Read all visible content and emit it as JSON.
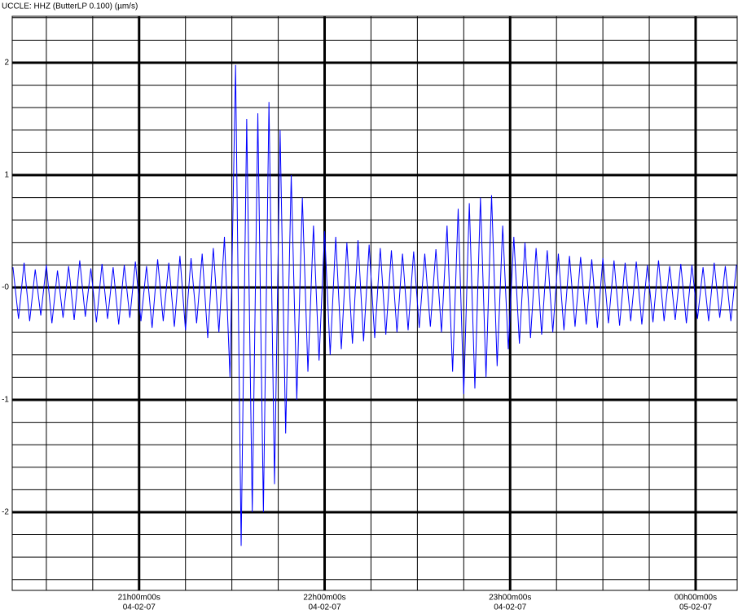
{
  "chart_data": {
    "type": "line",
    "title": "UCCLE: HHZ (ButterLP 0.100) (µm/s)",
    "xlim": [
      20.316,
      24.224
    ],
    "ylim": [
      -2.696,
      2.413
    ],
    "xticks": [
      {
        "value": 21,
        "label": "21h00m00s"
      },
      {
        "value": 22,
        "label": "22h00m00s"
      },
      {
        "value": 23,
        "label": "23h00m00s"
      },
      {
        "value": 24,
        "label": "00h00m00s"
      }
    ],
    "xtick_dates": [
      "04-02-07",
      "04-02-07",
      "04-02-07",
      "05-02-07"
    ],
    "xticks_minor": [
      20.5,
      20.75,
      21.25,
      21.5,
      21.75,
      22.25,
      22.5,
      22.75,
      23.25,
      23.5,
      23.75
    ],
    "yticks": [
      2,
      1,
      {
        "value": 0,
        "label": "-0"
      },
      -1,
      -2
    ],
    "yticks_minor": [
      -2.6,
      -2.4,
      -2.2,
      -1.8,
      -1.6,
      -1.4,
      -1.2,
      -0.8,
      -0.6,
      -0.4,
      -0.2,
      0.2,
      0.4,
      0.6,
      0.8,
      1.2,
      1.4,
      1.6,
      1.8,
      2.2,
      2.4
    ],
    "grid": true,
    "series": [
      {
        "color": "#0000ff",
        "x": [
          20.32,
          20.35,
          20.38,
          20.41,
          20.44,
          20.47,
          20.5,
          20.53,
          20.56,
          20.59,
          20.62,
          20.65,
          20.68,
          20.71,
          20.74,
          20.77,
          20.8,
          20.83,
          20.86,
          20.89,
          20.92,
          20.95,
          20.98,
          21.01,
          21.04,
          21.07,
          21.1,
          21.13,
          21.16,
          21.19,
          21.22,
          21.25,
          21.28,
          21.31,
          21.34,
          21.37,
          21.4,
          21.43,
          21.46,
          21.49,
          21.52,
          21.55,
          21.58,
          21.61,
          21.64,
          21.67,
          21.7,
          21.73,
          21.76,
          21.79,
          21.82,
          21.85,
          21.88,
          21.91,
          21.94,
          21.97,
          22,
          22.03,
          22.06,
          22.09,
          22.12,
          22.15,
          22.18,
          22.21,
          22.24,
          22.27,
          22.3,
          22.33,
          22.36,
          22.39,
          22.42,
          22.45,
          22.48,
          22.51,
          22.54,
          22.57,
          22.6,
          22.63,
          22.66,
          22.69,
          22.72,
          22.75,
          22.78,
          22.81,
          22.84,
          22.87,
          22.9,
          22.93,
          22.96,
          22.99,
          23.02,
          23.05,
          23.08,
          23.11,
          23.14,
          23.17,
          23.2,
          23.23,
          23.26,
          23.29,
          23.32,
          23.35,
          23.38,
          23.41,
          23.44,
          23.47,
          23.5,
          23.53,
          23.56,
          23.59,
          23.62,
          23.65,
          23.68,
          23.71,
          23.74,
          23.77,
          23.8,
          23.83,
          23.86,
          23.89,
          23.92,
          23.95,
          23.98,
          24.01,
          24.04,
          24.07,
          24.1,
          24.13,
          24.16,
          24.19,
          24.22
        ],
        "values": [
          0.18,
          -0.28,
          0.22,
          -0.3,
          0.16,
          -0.25,
          0.2,
          -0.32,
          0.15,
          -0.27,
          0.19,
          -0.29,
          0.24,
          -0.26,
          0.17,
          -0.31,
          0.21,
          -0.28,
          0.18,
          -0.33,
          0.2,
          -0.27,
          0.23,
          -0.3,
          0.19,
          -0.36,
          0.25,
          -0.3,
          0.22,
          -0.35,
          0.28,
          -0.38,
          0.26,
          -0.32,
          0.3,
          -0.45,
          0.35,
          -0.4,
          0.45,
          -0.8,
          1.98,
          -2.3,
          1.5,
          -2.0,
          1.55,
          -2.0,
          1.65,
          -1.75,
          1.4,
          -1.3,
          1.0,
          -1.0,
          0.8,
          -0.75,
          0.55,
          -0.65,
          0.5,
          -0.6,
          0.45,
          -0.55,
          0.4,
          -0.5,
          0.42,
          -0.48,
          0.38,
          -0.45,
          0.35,
          -0.42,
          0.33,
          -0.4,
          0.3,
          -0.38,
          0.32,
          -0.36,
          0.3,
          -0.35,
          0.34,
          -0.4,
          0.55,
          -0.75,
          0.7,
          -0.95,
          0.75,
          -0.9,
          0.8,
          -0.8,
          0.82,
          -0.7,
          0.55,
          -0.55,
          0.45,
          -0.5,
          0.4,
          -0.45,
          0.35,
          -0.42,
          0.33,
          -0.4,
          0.3,
          -0.38,
          0.28,
          -0.35,
          0.27,
          -0.33,
          0.25,
          -0.36,
          0.26,
          -0.32,
          0.24,
          -0.34,
          0.22,
          -0.3,
          0.23,
          -0.33,
          0.2,
          -0.31,
          0.24,
          -0.3,
          0.19,
          -0.29,
          0.21,
          -0.32,
          0.2,
          -0.28,
          0.18,
          -0.3,
          0.22,
          -0.27,
          0.19,
          -0.3,
          0.2
        ]
      }
    ]
  }
}
